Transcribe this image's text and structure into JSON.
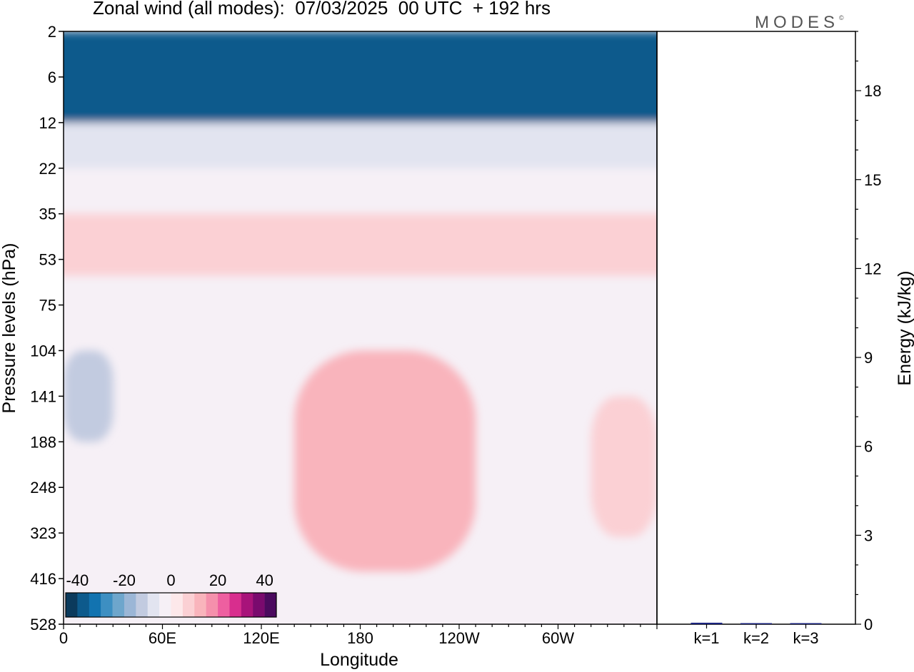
{
  "title": "Zonal wind (all modes):  07/03/2025  00 UTC  + 192 hrs",
  "brand": "MODES",
  "brand_mark": "©",
  "colors": {
    "scale": [
      "#0b3a5c",
      "#0d5a8c",
      "#1273b0",
      "#3d8fc2",
      "#6ea6cc",
      "#9bb6d6",
      "#c2cbe0",
      "#e2e4f0",
      "#f6f0f6",
      "#fde8ea",
      "#fbd0d4",
      "#f9b4bc",
      "#f590ac",
      "#ee5fa0",
      "#d82e8e",
      "#a8137a",
      "#7a0a6e",
      "#4b0a5e"
    ]
  },
  "chart_data": [
    {
      "type": "heatmap",
      "title": "Zonal wind (all modes):  07/03/2025  00 UTC  + 192 hrs",
      "xlabel": "Longitude",
      "ylabel": "Pressure levels (hPa)",
      "x_ticks": [
        "0",
        "60E",
        "120E",
        "180",
        "120W",
        "60W"
      ],
      "x_range": [
        0,
        360
      ],
      "y_ticks": [
        "2",
        "6",
        "12",
        "22",
        "35",
        "53",
        "75",
        "104",
        "141",
        "188",
        "248",
        "323",
        "416",
        "528"
      ],
      "colorbar": {
        "labels": [
          "-40",
          "-20",
          "0",
          "20",
          "40"
        ],
        "range": [
          -45,
          45
        ]
      },
      "features": [
        {
          "region": "stratospheric easterly jet",
          "lon": [
            0,
            360
          ],
          "hPa": [
            2,
            12
          ],
          "value": -40
        },
        {
          "region": "weak easterlies",
          "lon": [
            0,
            360
          ],
          "hPa": [
            12,
            22
          ],
          "value": -8
        },
        {
          "region": "weak westerlies",
          "lon": [
            0,
            360
          ],
          "hPa": [
            35,
            60
          ],
          "value": 6
        },
        {
          "region": "westerly maximum",
          "lon": [
            190,
            220
          ],
          "hPa": [
            141,
            300
          ],
          "value": 22
        },
        {
          "region": "westerly core",
          "lon": [
            140,
            250
          ],
          "hPa": [
            104,
            400
          ],
          "value": 12
        },
        {
          "region": "easterly patch",
          "lon": [
            0,
            30
          ],
          "hPa": [
            104,
            188
          ],
          "value": -12
        },
        {
          "region": "weak westerlies",
          "lon": [
            320,
            360
          ],
          "hPa": [
            141,
            330
          ],
          "value": 6
        }
      ]
    },
    {
      "type": "bar",
      "ylabel": "Energy (kJ/kg)",
      "categories": [
        "k=1",
        "k=2",
        "k=3"
      ],
      "values": [
        0.05,
        0.02,
        0.02
      ],
      "y_ticks": [
        "0",
        "3",
        "6",
        "9",
        "12",
        "15",
        "18"
      ],
      "ylim": [
        0,
        20
      ]
    }
  ]
}
